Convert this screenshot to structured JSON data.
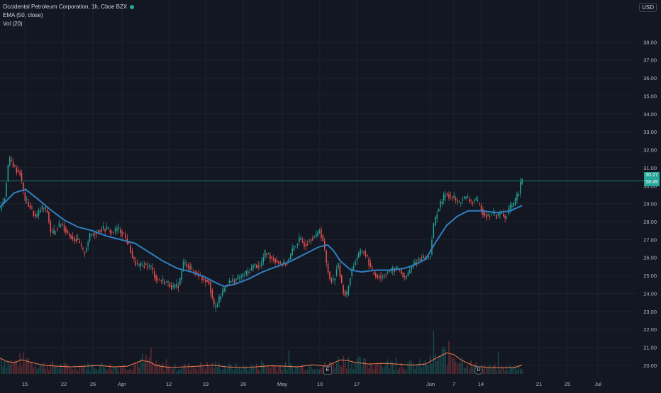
{
  "header": {
    "symbol_line": "Occidental Petroleum Corporation, 1h, Cboe BZX",
    "ema_label": "EMA (50, close)",
    "vol_label": "Vol (20)",
    "currency": "USD"
  },
  "price_badge": {
    "price": "30.27",
    "countdown": "58:49"
  },
  "events": {
    "earnings": "E",
    "dividend": "D"
  },
  "colors": {
    "background": "#131722",
    "up": "#26a69a",
    "down": "#ef5350",
    "ema": "#2f7fc1",
    "vol_ma": "#f57c4d",
    "grid": "#1e222d",
    "axis_text": "#b2b5be"
  },
  "chart_data": {
    "type": "candlestick",
    "title": "Occidental Petroleum Corporation, 1h, Cboe BZX",
    "ylim": [
      19.8,
      39.0
    ],
    "y_ticks": [
      "20.00",
      "21.00",
      "22.00",
      "23.00",
      "24.00",
      "25.00",
      "26.00",
      "27.00",
      "28.00",
      "29.00",
      "30.00",
      "31.00",
      "32.00",
      "33.00",
      "34.00",
      "35.00",
      "36.00",
      "37.00",
      "38.00"
    ],
    "x_ticks": [
      "15",
      "22",
      "26",
      "Apr",
      "12",
      "19",
      "26",
      "May",
      "10",
      "17",
      "Jun",
      "7",
      "14",
      "21",
      "25",
      "Jul"
    ],
    "current_price": 30.27,
    "price_path": [
      [
        0,
        28.6
      ],
      [
        8,
        29.3
      ],
      [
        14,
        31.5
      ],
      [
        18,
        31.3
      ],
      [
        24,
        30.9
      ],
      [
        30,
        30.7
      ],
      [
        36,
        29.3
      ],
      [
        44,
        28.8
      ],
      [
        52,
        28.2
      ],
      [
        60,
        28.8
      ],
      [
        68,
        28.6
      ],
      [
        74,
        27.2
      ],
      [
        80,
        27.6
      ],
      [
        88,
        27.9
      ],
      [
        96,
        27.4
      ],
      [
        104,
        27.1
      ],
      [
        112,
        26.9
      ],
      [
        120,
        26.2
      ],
      [
        128,
        27.2
      ],
      [
        136,
        27.4
      ],
      [
        144,
        27.6
      ],
      [
        152,
        27.6
      ],
      [
        160,
        27.4
      ],
      [
        168,
        27.6
      ],
      [
        176,
        27.3
      ],
      [
        184,
        26.6
      ],
      [
        190,
        25.8
      ],
      [
        198,
        25.5
      ],
      [
        206,
        25.6
      ],
      [
        214,
        25.5
      ],
      [
        222,
        24.8
      ],
      [
        230,
        24.7
      ],
      [
        238,
        24.6
      ],
      [
        246,
        24.3
      ],
      [
        254,
        24.5
      ],
      [
        260,
        25.7
      ],
      [
        266,
        25.6
      ],
      [
        272,
        25.3
      ],
      [
        280,
        25.1
      ],
      [
        288,
        24.8
      ],
      [
        296,
        24.7
      ],
      [
        304,
        23.1
      ],
      [
        312,
        23.8
      ],
      [
        320,
        24.5
      ],
      [
        328,
        24.7
      ],
      [
        336,
        24.8
      ],
      [
        344,
        25.0
      ],
      [
        352,
        25.2
      ],
      [
        360,
        25.6
      ],
      [
        368,
        25.5
      ],
      [
        376,
        26.3
      ],
      [
        384,
        26.0
      ],
      [
        392,
        25.8
      ],
      [
        400,
        25.6
      ],
      [
        408,
        25.8
      ],
      [
        416,
        26.6
      ],
      [
        424,
        27.0
      ],
      [
        432,
        26.7
      ],
      [
        440,
        27.1
      ],
      [
        448,
        27.2
      ],
      [
        452,
        27.6
      ],
      [
        458,
        26.8
      ],
      [
        462,
        25.6
      ],
      [
        466,
        24.9
      ],
      [
        472,
        24.7
      ],
      [
        478,
        25.7
      ],
      [
        484,
        24.3
      ],
      [
        490,
        23.8
      ],
      [
        496,
        25.1
      ],
      [
        502,
        25.8
      ],
      [
        508,
        26.2
      ],
      [
        514,
        26.4
      ],
      [
        520,
        25.9
      ],
      [
        526,
        25.2
      ],
      [
        532,
        25.0
      ],
      [
        540,
        24.9
      ],
      [
        548,
        25.2
      ],
      [
        556,
        25.3
      ],
      [
        564,
        25.4
      ],
      [
        572,
        24.8
      ],
      [
        580,
        25.3
      ],
      [
        586,
        25.7
      ],
      [
        592,
        25.9
      ],
      [
        598,
        26.0
      ],
      [
        604,
        26.0
      ],
      [
        608,
        26.1
      ],
      [
        612,
        27.6
      ],
      [
        618,
        28.6
      ],
      [
        624,
        29.1
      ],
      [
        630,
        29.6
      ],
      [
        636,
        29.4
      ],
      [
        642,
        29.3
      ],
      [
        648,
        29.0
      ],
      [
        654,
        29.3
      ],
      [
        660,
        29.3
      ],
      [
        666,
        29.1
      ],
      [
        672,
        29.2
      ],
      [
        678,
        28.9
      ],
      [
        684,
        28.4
      ],
      [
        690,
        28.3
      ],
      [
        696,
        28.5
      ],
      [
        702,
        28.3
      ],
      [
        708,
        28.5
      ],
      [
        714,
        28.2
      ],
      [
        720,
        28.8
      ],
      [
        726,
        28.9
      ],
      [
        730,
        29.4
      ],
      [
        734,
        29.6
      ],
      [
        736,
        30.27
      ]
    ],
    "ema_path": [
      [
        0,
        28.8
      ],
      [
        20,
        29.6
      ],
      [
        36,
        29.8
      ],
      [
        52,
        29.3
      ],
      [
        70,
        28.7
      ],
      [
        90,
        28.1
      ],
      [
        110,
        27.7
      ],
      [
        130,
        27.5
      ],
      [
        150,
        27.2
      ],
      [
        170,
        27.0
      ],
      [
        190,
        26.8
      ],
      [
        210,
        26.3
      ],
      [
        230,
        25.8
      ],
      [
        250,
        25.4
      ],
      [
        270,
        25.2
      ],
      [
        290,
        24.9
      ],
      [
        304,
        24.6
      ],
      [
        316,
        24.4
      ],
      [
        330,
        24.5
      ],
      [
        350,
        24.8
      ],
      [
        370,
        25.2
      ],
      [
        390,
        25.5
      ],
      [
        410,
        25.8
      ],
      [
        430,
        26.2
      ],
      [
        450,
        26.6
      ],
      [
        462,
        26.7
      ],
      [
        470,
        26.4
      ],
      [
        480,
        25.8
      ],
      [
        495,
        25.3
      ],
      [
        510,
        25.2
      ],
      [
        530,
        25.3
      ],
      [
        550,
        25.3
      ],
      [
        570,
        25.4
      ],
      [
        585,
        25.6
      ],
      [
        600,
        25.9
      ],
      [
        615,
        26.9
      ],
      [
        630,
        27.8
      ],
      [
        645,
        28.3
      ],
      [
        660,
        28.6
      ],
      [
        680,
        28.6
      ],
      [
        700,
        28.5
      ],
      [
        720,
        28.6
      ],
      [
        736,
        28.9
      ]
    ],
    "volume_ma_path": [
      [
        0,
        0.45
      ],
      [
        10,
        0.35
      ],
      [
        20,
        0.32
      ],
      [
        30,
        0.4
      ],
      [
        40,
        0.35
      ],
      [
        60,
        0.25
      ],
      [
        80,
        0.22
      ],
      [
        100,
        0.2
      ],
      [
        120,
        0.22
      ],
      [
        140,
        0.24
      ],
      [
        160,
        0.2
      ],
      [
        180,
        0.22
      ],
      [
        200,
        0.38
      ],
      [
        210,
        0.35
      ],
      [
        220,
        0.24
      ],
      [
        240,
        0.18
      ],
      [
        260,
        0.2
      ],
      [
        280,
        0.22
      ],
      [
        300,
        0.25
      ],
      [
        320,
        0.2
      ],
      [
        340,
        0.18
      ],
      [
        360,
        0.2
      ],
      [
        380,
        0.23
      ],
      [
        400,
        0.22
      ],
      [
        420,
        0.2
      ],
      [
        440,
        0.26
      ],
      [
        460,
        0.22
      ],
      [
        480,
        0.4
      ],
      [
        490,
        0.38
      ],
      [
        500,
        0.33
      ],
      [
        520,
        0.28
      ],
      [
        540,
        0.3
      ],
      [
        560,
        0.28
      ],
      [
        580,
        0.25
      ],
      [
        600,
        0.28
      ],
      [
        615,
        0.45
      ],
      [
        630,
        0.6
      ],
      [
        640,
        0.55
      ],
      [
        650,
        0.4
      ],
      [
        660,
        0.3
      ],
      [
        670,
        0.22
      ],
      [
        690,
        0.18
      ],
      [
        710,
        0.17
      ],
      [
        725,
        0.18
      ],
      [
        736,
        0.25
      ]
    ]
  }
}
